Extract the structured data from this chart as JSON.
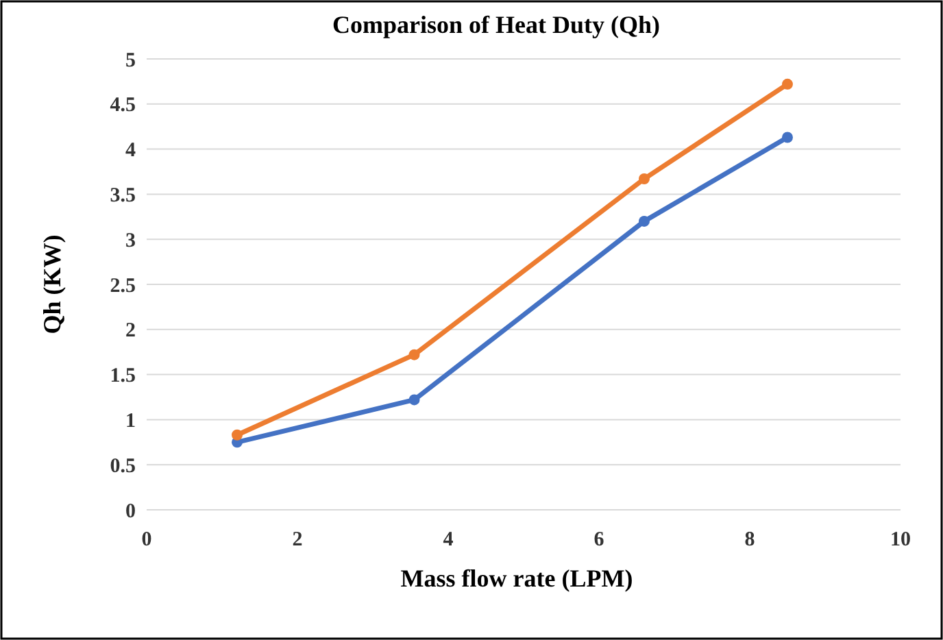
{
  "chart_data": {
    "type": "line",
    "title": "Comparison of Heat Duty (Qh)",
    "xlabel": "Mass flow rate (LPM)",
    "ylabel": "Qh (KW)",
    "series": [
      {
        "color": "#4472c4",
        "x": [
          1.2,
          3.55,
          6.6,
          8.5
        ],
        "values": [
          0.75,
          1.22,
          3.2,
          4.13
        ]
      },
      {
        "color": "#ed7d31",
        "x": [
          1.2,
          3.55,
          6.6,
          8.5
        ],
        "values": [
          0.83,
          1.72,
          3.67,
          4.72
        ]
      }
    ],
    "xlim": [
      0,
      10
    ],
    "xticks": [
      0,
      2,
      4,
      6,
      8,
      10
    ],
    "ylim": [
      0,
      5
    ],
    "yticks": [
      0,
      0.5,
      1,
      1.5,
      2,
      2.5,
      3,
      3.5,
      4,
      4.5,
      5
    ],
    "grid": "y",
    "marker": "circle",
    "line_style": "solid"
  }
}
